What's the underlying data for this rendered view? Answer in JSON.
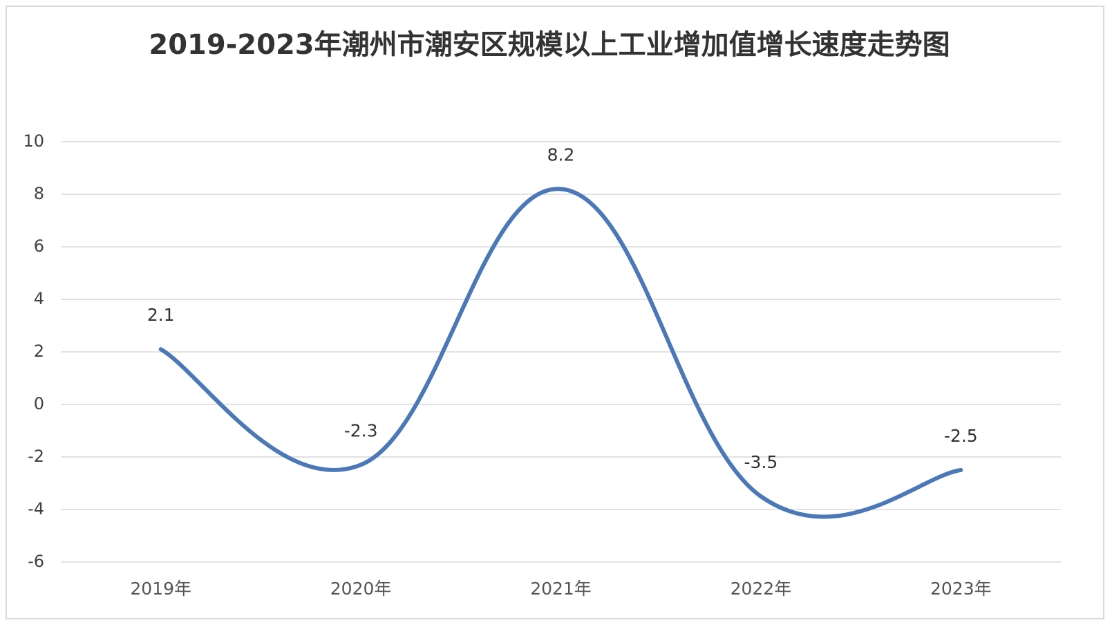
{
  "chart_data": {
    "type": "line",
    "title": "2019-2023年潮州市潮安区规模以上工业增加值增长速度走势图",
    "categories": [
      "2019年",
      "2020年",
      "2021年",
      "2022年",
      "2023年"
    ],
    "values": [
      2.1,
      -2.3,
      8.2,
      -3.5,
      -2.5
    ],
    "color": "#4a78b8",
    "ylim": [
      -6,
      10
    ],
    "yticks": [
      -6,
      -4,
      -2,
      0,
      2,
      4,
      6,
      8,
      10
    ],
    "grid": true,
    "smooth": true
  }
}
